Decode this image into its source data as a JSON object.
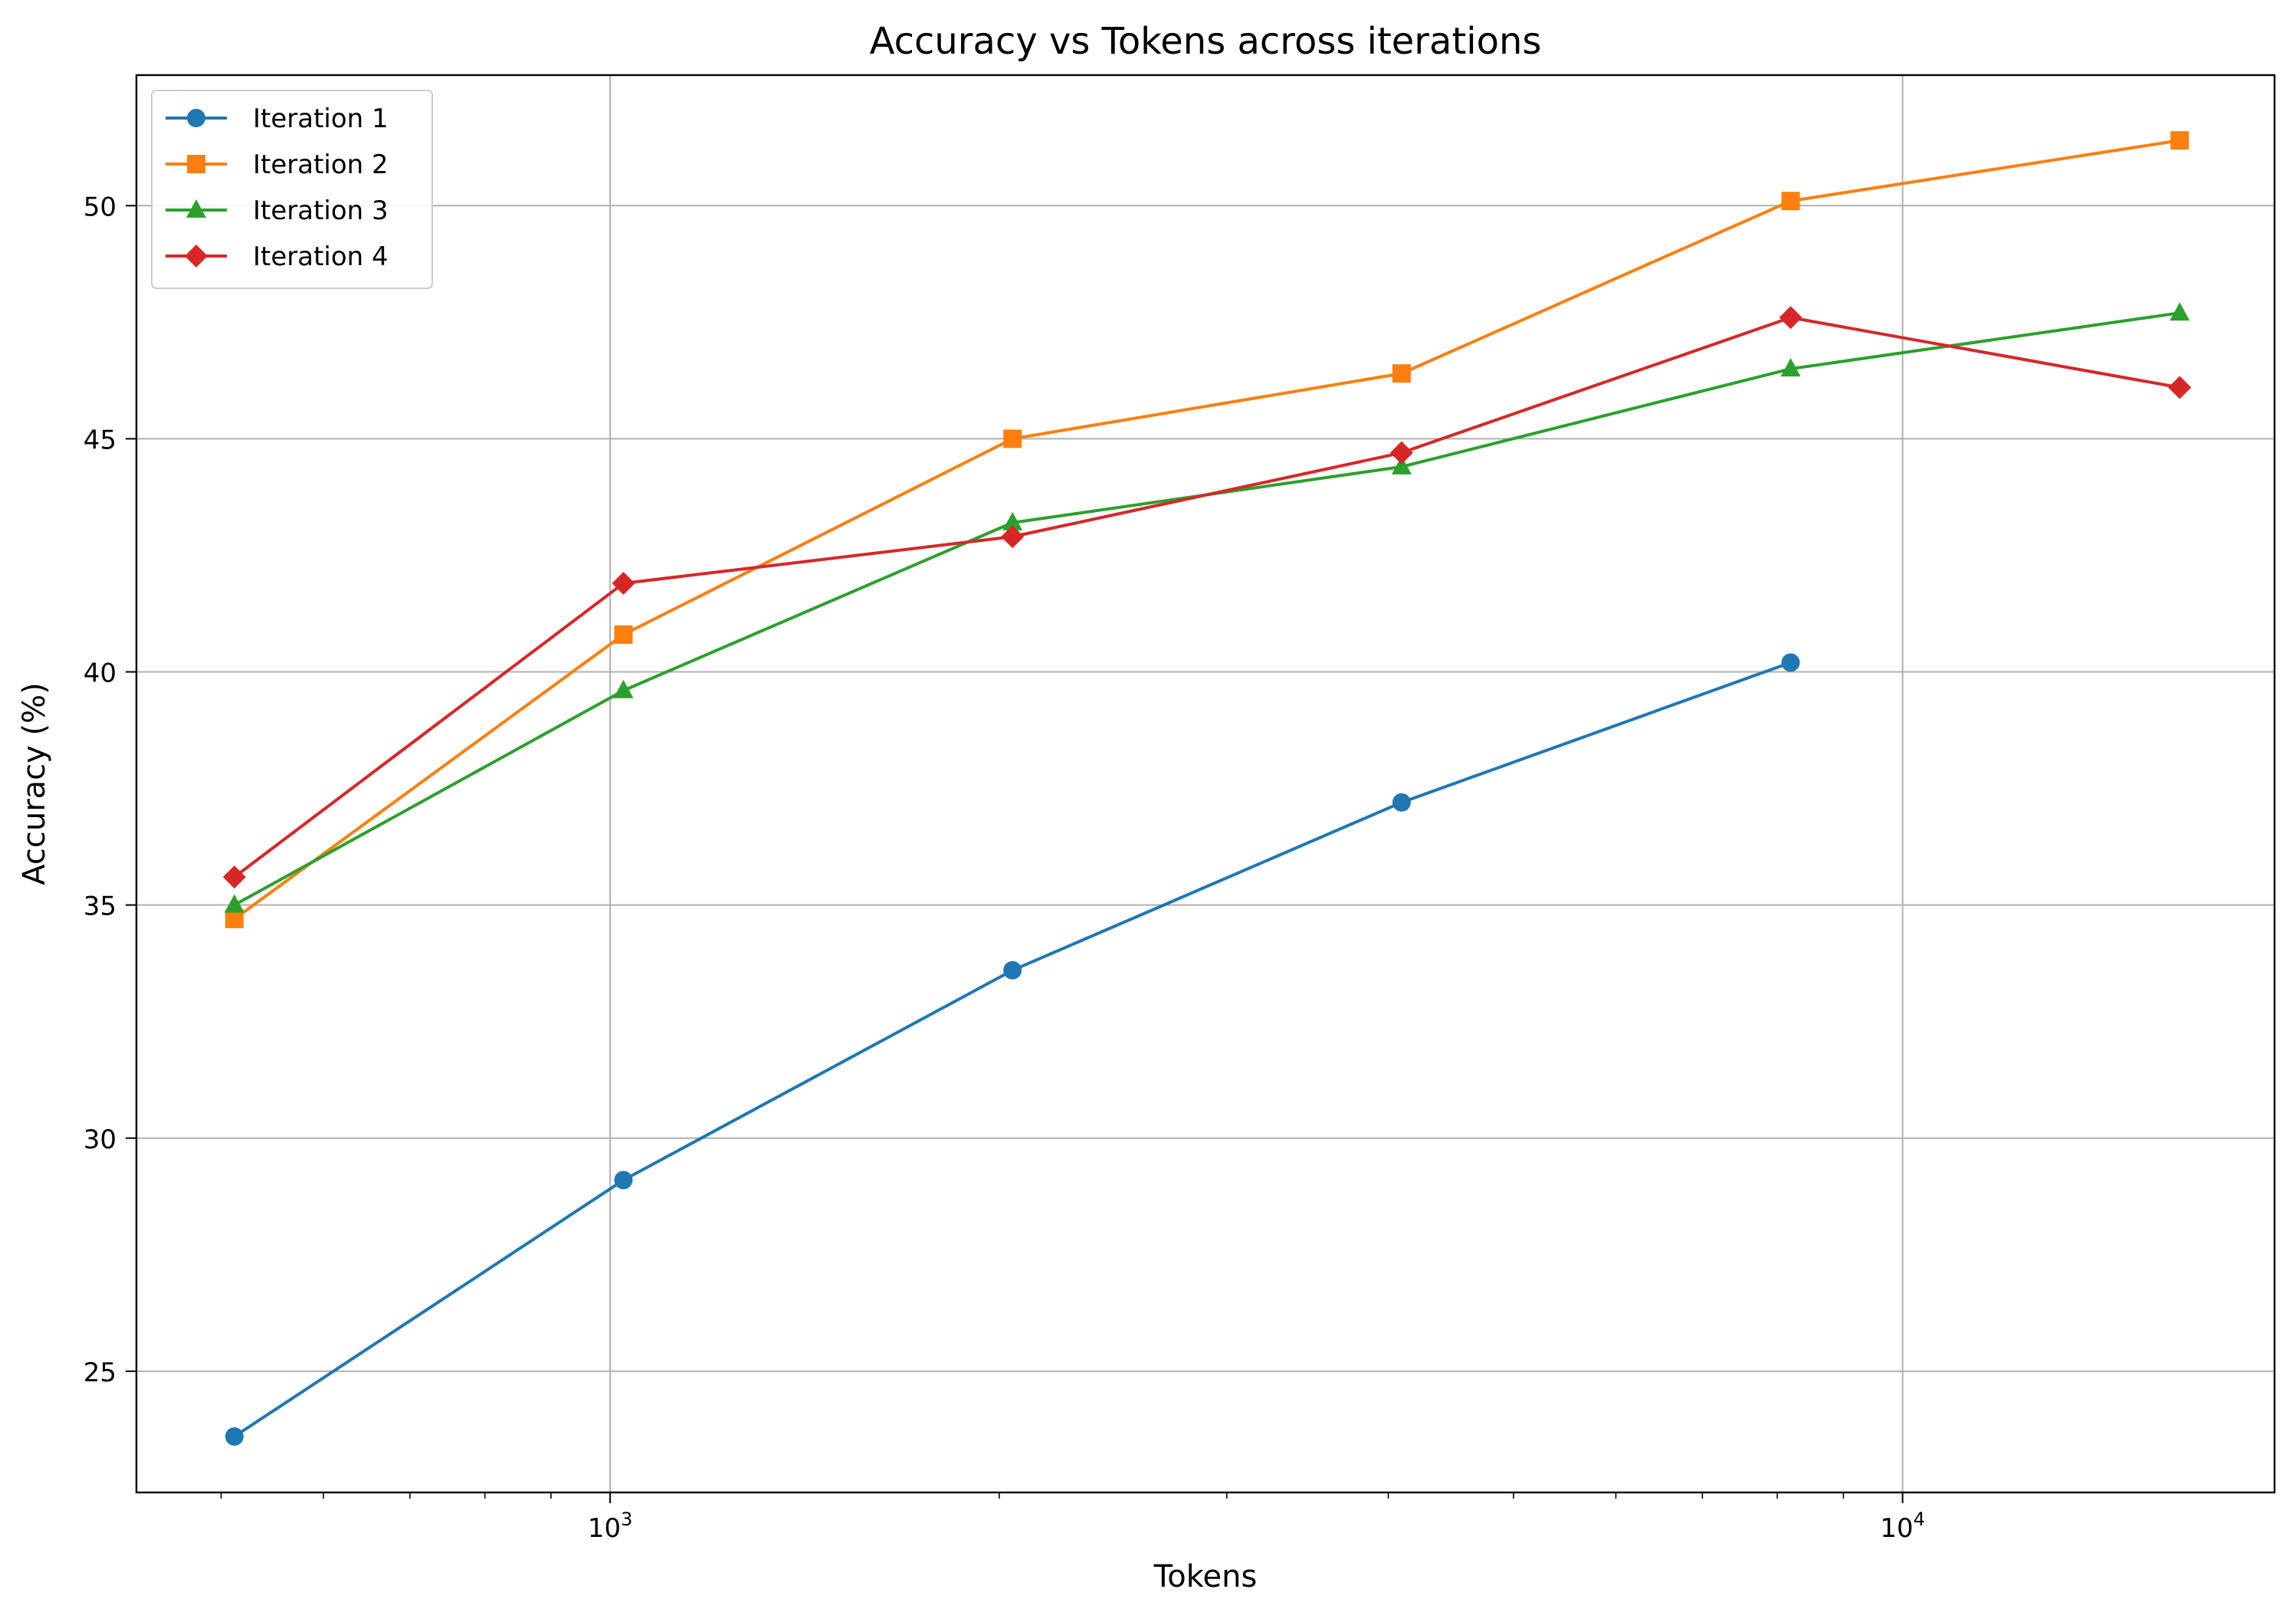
{
  "chart_data": {
    "type": "line",
    "title": "Accuracy vs Tokens across iterations",
    "xlabel": "Tokens",
    "ylabel": "Accuracy (%)",
    "xscale": "log",
    "xlim": [
      430,
      19400
    ],
    "ylim": [
      22.4,
      52.8
    ],
    "x_ticks": [
      {
        "value": 1000,
        "base": "10",
        "exp": "3"
      },
      {
        "value": 10000,
        "base": "10",
        "exp": "4"
      }
    ],
    "y_ticks": [
      25,
      30,
      35,
      40,
      45,
      50
    ],
    "grid": true,
    "legend_position": "top-left",
    "series": [
      {
        "name": "Iteration 1",
        "color": "#1f77b4",
        "marker": "circle",
        "x": [
          512,
          1024,
          2048,
          4096,
          8192
        ],
        "y": [
          23.6,
          29.1,
          33.6,
          37.2,
          40.2
        ]
      },
      {
        "name": "Iteration 2",
        "color": "#ff7f0e",
        "marker": "square",
        "x": [
          512,
          1024,
          2048,
          4096,
          8192,
          16384
        ],
        "y": [
          34.7,
          40.8,
          45.0,
          46.4,
          50.1,
          51.4
        ]
      },
      {
        "name": "Iteration 3",
        "color": "#2ca02c",
        "marker": "triangle",
        "x": [
          512,
          1024,
          2048,
          4096,
          8192,
          16384
        ],
        "y": [
          35.0,
          39.6,
          43.2,
          44.4,
          46.5,
          47.7
        ]
      },
      {
        "name": "Iteration 4",
        "color": "#d62728",
        "marker": "diamond",
        "x": [
          512,
          1024,
          2048,
          4096,
          8192,
          16384
        ],
        "y": [
          35.6,
          41.9,
          42.9,
          44.7,
          47.6,
          46.1
        ]
      }
    ]
  }
}
